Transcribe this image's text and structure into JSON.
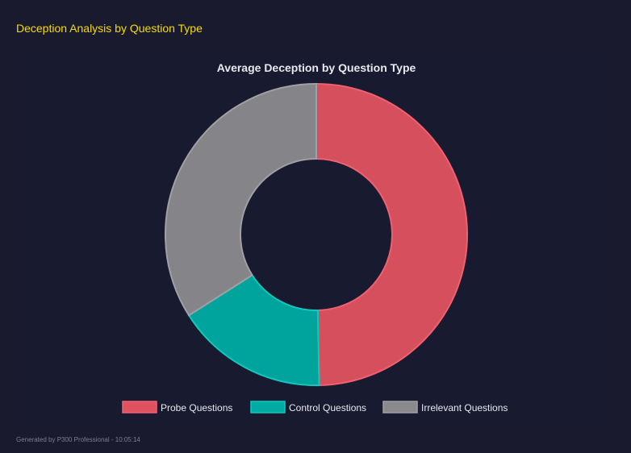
{
  "header": {
    "title": "Deception Analysis by Question Type"
  },
  "footer": {
    "text": "Generated by P300 Professional - 10:05:14"
  },
  "chart_data": {
    "type": "pie",
    "variant": "doughnut",
    "title": "Average Deception by Question Type",
    "categories": [
      "Probe Questions",
      "Control Questions",
      "Irrelevant Questions"
    ],
    "values": [
      49.7,
      16.3,
      34.0
    ],
    "colors": [
      "#e05260",
      "#00aba3",
      "#8a8a8e"
    ],
    "legend_placement": "bottom"
  }
}
